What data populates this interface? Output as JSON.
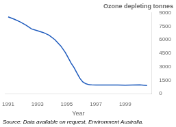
{
  "chart_data": {
    "type": "line",
    "title": "Ozone depleting tonnes",
    "xlabel": "Year",
    "annotation": "Source: Data available on request, Environment Australia.",
    "color": "#1f5bbd",
    "x": [
      1991.0,
      1991.4,
      1991.8,
      1992.2,
      1992.6,
      1993.0,
      1993.4,
      1993.8,
      1994.2,
      1994.6,
      1994.9,
      1995.1,
      1995.3,
      1995.5,
      1995.7,
      1995.9,
      1996.1,
      1996.3,
      1996.5,
      1996.6,
      1996.7,
      1997.0,
      1997.5,
      1998.0,
      1998.5,
      1999.0,
      1999.5,
      2000.0,
      2000.5
    ],
    "values": [
      8550,
      8300,
      8000,
      7650,
      7200,
      7000,
      6800,
      6500,
      6000,
      5300,
      4600,
      4000,
      3400,
      2900,
      2300,
      1700,
      1300,
      1100,
      1000,
      980,
      970,
      960,
      950,
      960,
      950,
      940,
      960,
      980,
      900
    ],
    "xlim": [
      1990.8,
      2000.8
    ],
    "xticks": [
      1991,
      1993,
      1995,
      1997,
      1999
    ],
    "ylim": [
      0,
      9000
    ],
    "yticks": [
      0,
      1500,
      3000,
      4500,
      6000,
      7500,
      9000
    ],
    "grid": false
  }
}
